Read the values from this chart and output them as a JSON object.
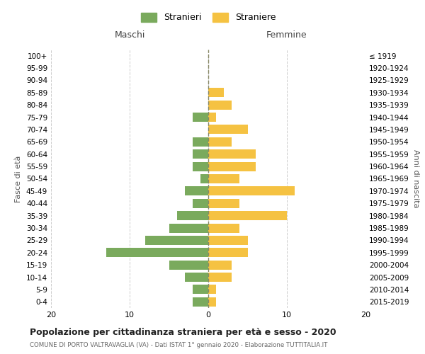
{
  "age_groups": [
    "0-4",
    "5-9",
    "10-14",
    "15-19",
    "20-24",
    "25-29",
    "30-34",
    "35-39",
    "40-44",
    "45-49",
    "50-54",
    "55-59",
    "60-64",
    "65-69",
    "70-74",
    "75-79",
    "80-84",
    "85-89",
    "90-94",
    "95-99",
    "100+"
  ],
  "birth_years": [
    "2015-2019",
    "2010-2014",
    "2005-2009",
    "2000-2004",
    "1995-1999",
    "1990-1994",
    "1985-1989",
    "1980-1984",
    "1975-1979",
    "1970-1974",
    "1965-1969",
    "1960-1964",
    "1955-1959",
    "1950-1954",
    "1945-1949",
    "1940-1944",
    "1935-1939",
    "1930-1934",
    "1925-1929",
    "1920-1924",
    "≤ 1919"
  ],
  "maschi": [
    2,
    2,
    3,
    5,
    13,
    8,
    5,
    4,
    2,
    3,
    1,
    2,
    2,
    2,
    0,
    2,
    0,
    0,
    0,
    0,
    0
  ],
  "femmine": [
    1,
    1,
    3,
    3,
    5,
    5,
    4,
    10,
    4,
    11,
    4,
    6,
    6,
    3,
    5,
    1,
    3,
    2,
    0,
    0,
    0
  ],
  "color_maschi": "#7aaa5d",
  "color_femmine": "#f5c242",
  "title": "Popolazione per cittadinanza straniera per età e sesso - 2020",
  "subtitle": "COMUNE DI PORTO VALTRAVAGLIA (VA) - Dati ISTAT 1° gennaio 2020 - Elaborazione TUTTITALIA.IT",
  "ylabel_left": "Fasce di età",
  "ylabel_right": "Anni di nascita",
  "xlabel_left": "Maschi",
  "xlabel_right": "Femmine",
  "legend_maschi": "Stranieri",
  "legend_femmine": "Straniere",
  "xlim": 20,
  "bg_color": "#ffffff",
  "grid_color": "#cccccc",
  "bar_height": 0.75
}
